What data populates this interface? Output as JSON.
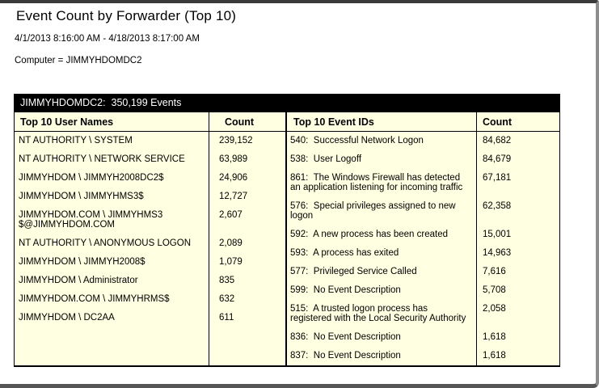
{
  "page": {
    "title": "Event Count by Forwarder (Top 10)",
    "date_range": "4/1/2013 8:16:00 AM - 4/18/2013 8:17:00 AM",
    "filter": "Computer = JIMMYHDOMDC2"
  },
  "report": {
    "band": "JIMMYHDOMDC2:  350,199 Events",
    "colors": {
      "band_bg": "#000000",
      "band_text": "#FFFFFF",
      "cell_bg": "#FFFFE1",
      "border": "#000000",
      "frame_top": "#3A3A3A",
      "frame_right": "#8D8D8D",
      "frame_bottom": "#565656"
    },
    "tables": [
      {
        "id": "user",
        "headers": {
          "label": "Top 10 User Names",
          "count": "Count"
        },
        "rows": [
          {
            "label": "NT AUTHORITY \\ SYSTEM",
            "count": "239,152"
          },
          {
            "label": "NT AUTHORITY \\ NETWORK SERVICE",
            "count": "63,989"
          },
          {
            "label": "JIMMYHDOM \\ JIMMYH2008DC2$",
            "count": "24,906"
          },
          {
            "label": "JIMMYHDOM \\ JIMMYHMS3$",
            "count": "12,727"
          },
          {
            "label": "JIMMYHDOM.COM \\ JIMMYHMS3\n$@JIMMYHDOM.COM",
            "count": "2,607"
          },
          {
            "label": "NT AUTHORITY \\ ANONYMOUS LOGON",
            "count": "2,089"
          },
          {
            "label": "JIMMYHDOM \\ JIMMYH2008$",
            "count": "1,079"
          },
          {
            "label": "JIMMYHDOM \\ Administrator",
            "count": "835"
          },
          {
            "label": "JIMMYHDOM.COM \\ JIMMYHRMS$",
            "count": "632"
          },
          {
            "label": "JIMMYHDOM \\ DC2AA",
            "count": "611"
          }
        ]
      },
      {
        "id": "event",
        "headers": {
          "label": "Top 10 Event IDs",
          "count": "Count"
        },
        "rows": [
          {
            "label": "540:  Successful Network Logon",
            "count": "84,682"
          },
          {
            "label": "538:  User Logoff",
            "count": "84,679"
          },
          {
            "label": "861:  The Windows Firewall has detected an application listening for incoming traffic",
            "count": "67,181"
          },
          {
            "label": "576:  Special privileges assigned to new logon",
            "count": "62,358"
          },
          {
            "label": "592:  A new process has been created",
            "count": "15,001"
          },
          {
            "label": "593:  A process has exited",
            "count": "14,963"
          },
          {
            "label": "577:  Privileged Service Called",
            "count": "7,616"
          },
          {
            "label": "599:  No Event Description",
            "count": "5,708"
          },
          {
            "label": "515:  A trusted logon process has registered with the Local Security Authority",
            "count": "2,058"
          },
          {
            "label": "836:  No Event Description",
            "count": "1,618"
          },
          {
            "label": "837:  No Event Description",
            "count": "1,618"
          }
        ]
      }
    ]
  }
}
